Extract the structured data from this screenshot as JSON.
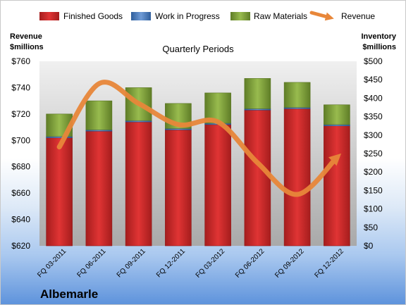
{
  "chart_data": {
    "type": "bar",
    "title": "Quarterly Periods",
    "company": "Albemarle",
    "categories": [
      "FQ 03-2011",
      "FQ 06-2011",
      "FQ 09-2011",
      "FQ 12-2011",
      "FQ 03-2012",
      "FQ 06-2012",
      "FQ 09-2012",
      "FQ 12-2012"
    ],
    "left_axis": {
      "label_line1": "Revenue",
      "label_line2": "$millions",
      "range": [
        620,
        760
      ],
      "ticks": [
        "$620",
        "$640",
        "$660",
        "$680",
        "$700",
        "$720",
        "$740",
        "$760"
      ]
    },
    "right_axis": {
      "label_line1": "Inventory",
      "label_line2": "$millions",
      "range": [
        0,
        500
      ],
      "ticks": [
        "$0",
        "$50",
        "$100",
        "$150",
        "$200",
        "$250",
        "$300",
        "$350",
        "$400",
        "$450",
        "$500"
      ]
    },
    "series": [
      {
        "name": "Finished Goods",
        "type": "stacked-bar",
        "axis": "left",
        "color": "#cc2a2a",
        "values": [
          702,
          707,
          714,
          708,
          712,
          723,
          724,
          711
        ]
      },
      {
        "name": "Work in Progress",
        "type": "stacked-bar",
        "axis": "left",
        "color": "#4a7fc1",
        "values": [
          1,
          1,
          1,
          1,
          1,
          1,
          1,
          1
        ]
      },
      {
        "name": "Raw Materials",
        "type": "stacked-bar",
        "axis": "left",
        "color": "#7ea03a",
        "values": [
          17,
          22,
          25,
          19,
          23,
          23,
          19,
          15
        ]
      },
      {
        "name": "Revenue",
        "type": "line",
        "axis": "left",
        "color": "#e8873a",
        "values": [
          695,
          743,
          728,
          712,
          714,
          683,
          659,
          687
        ]
      }
    ],
    "legend_position": "top",
    "grid": false
  }
}
